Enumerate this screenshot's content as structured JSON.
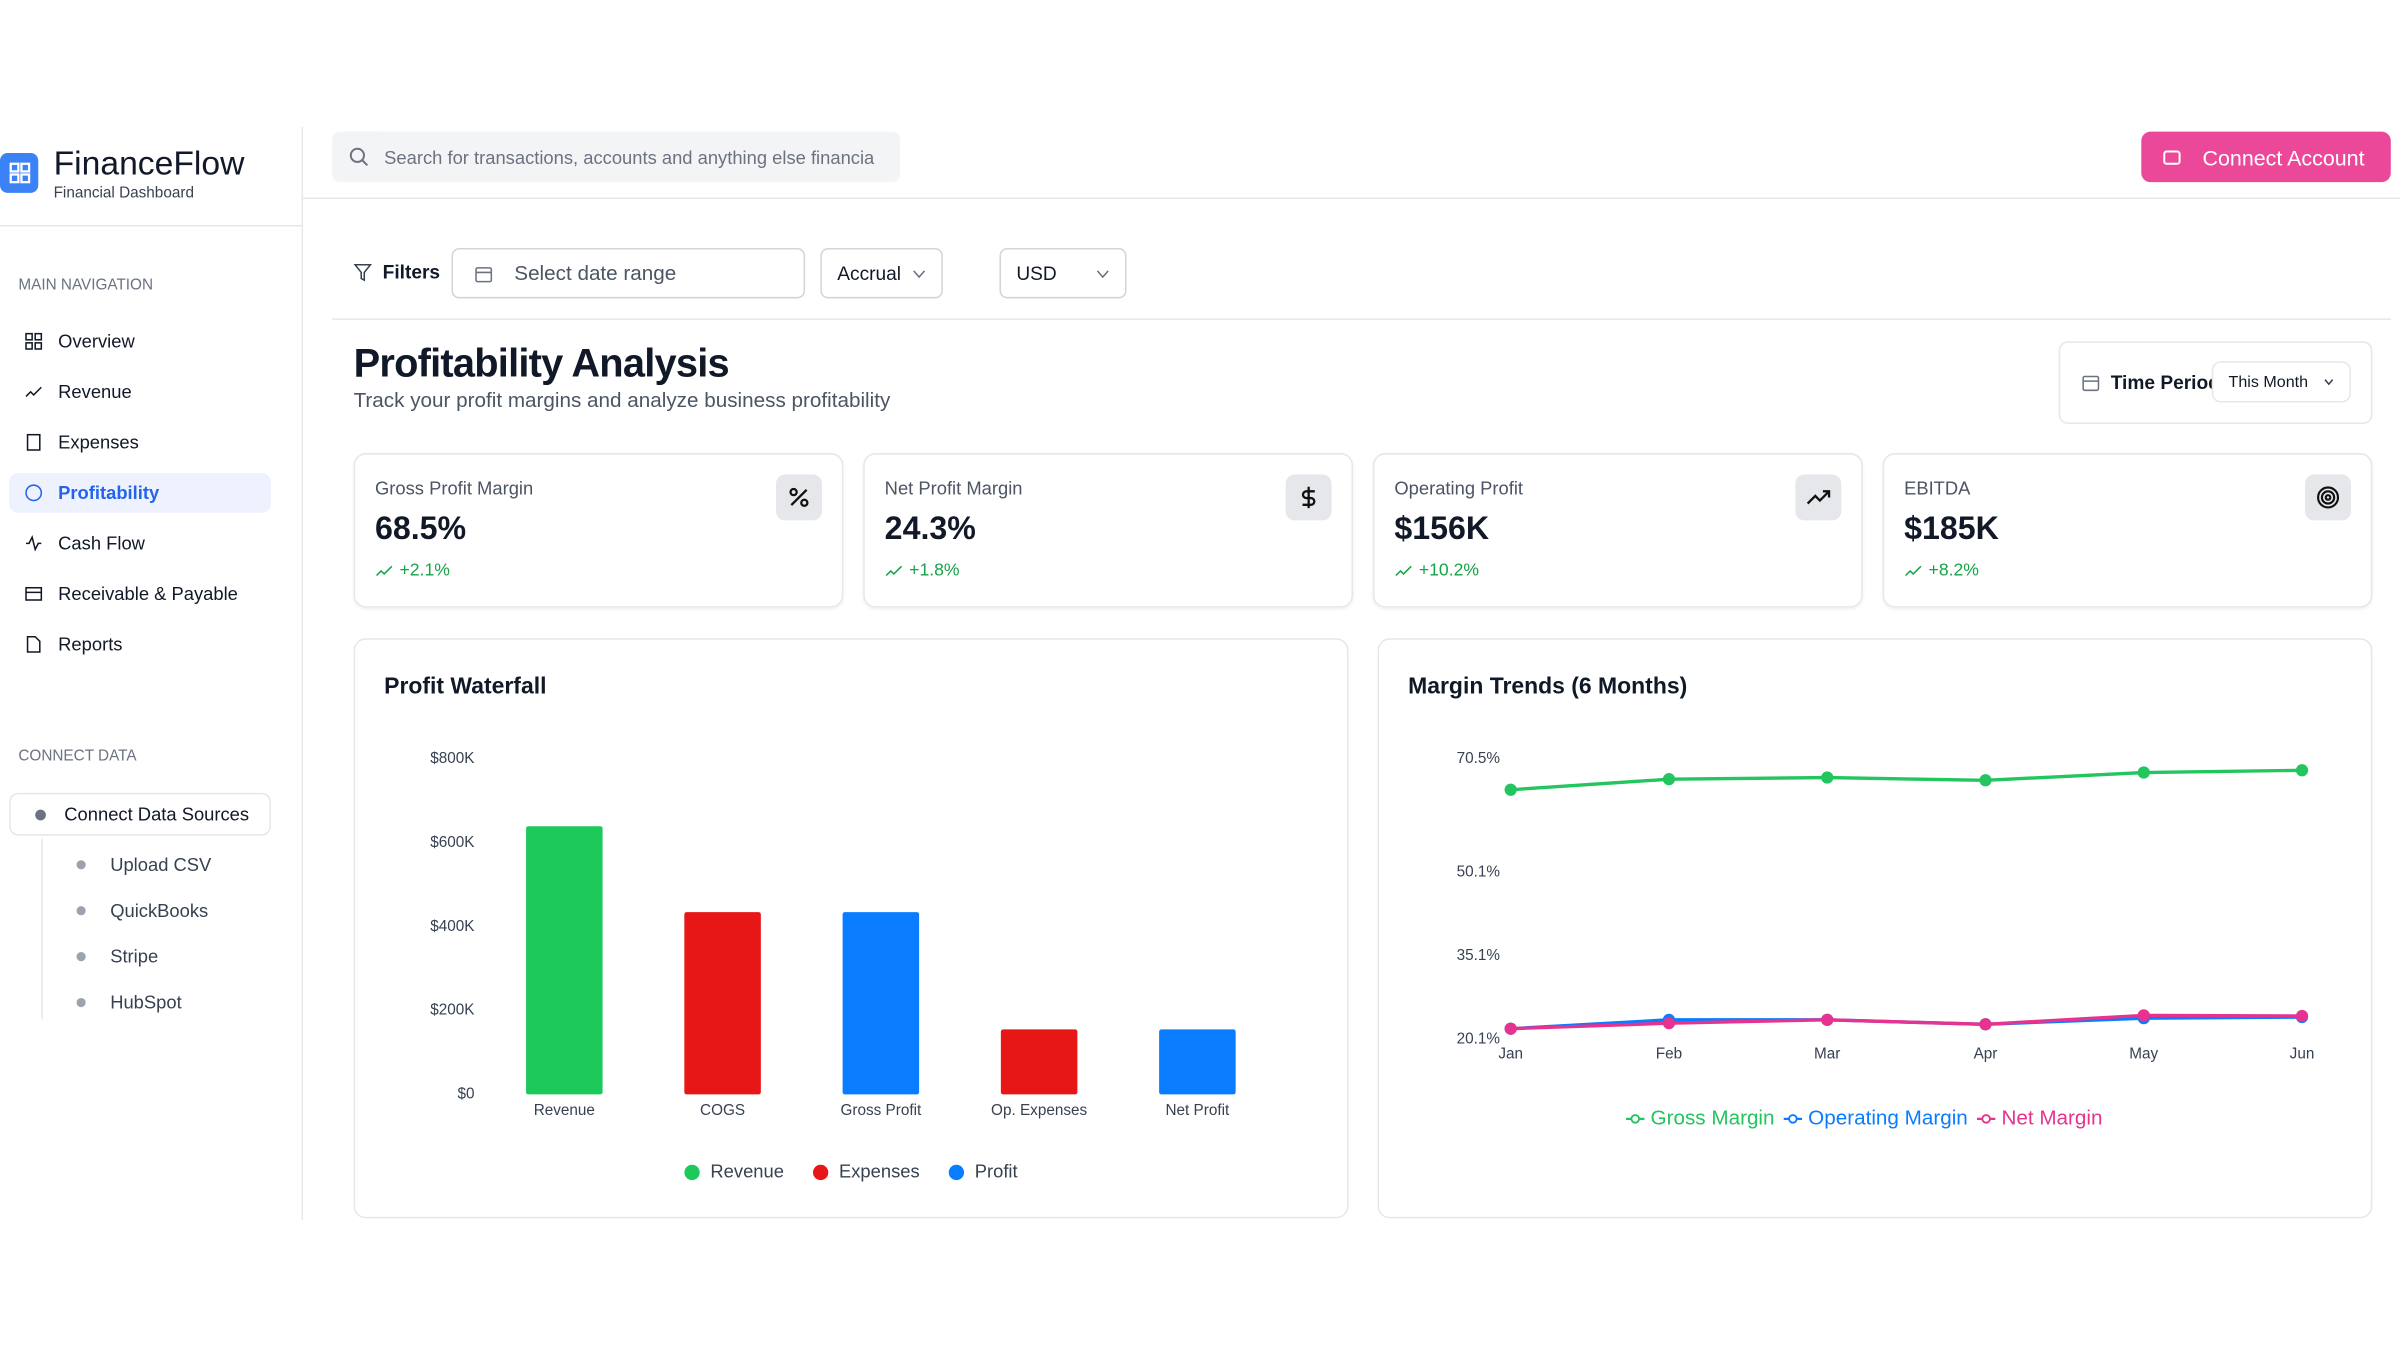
{
  "header": {
    "brand": "FinanceFlow",
    "tagline": "Financial Dashboard",
    "search_placeholder": "Search for transactions, accounts and anything else financia",
    "action": "Connect Account"
  },
  "sidebar": {
    "main_heading": "MAIN NAVIGATION",
    "nav": [
      {
        "label": "Overview"
      },
      {
        "label": "Revenue"
      },
      {
        "label": "Expenses"
      },
      {
        "label": "Profitability",
        "active": true
      },
      {
        "label": "Cash Flow"
      },
      {
        "label": "Receivable & Payable"
      },
      {
        "label": "Reports"
      }
    ],
    "connect_heading": "CONNECT DATA",
    "connect_button": "Connect Data Sources",
    "sources": [
      "Upload CSV",
      "QuickBooks",
      "Stripe",
      "HubSpot"
    ]
  },
  "filters": {
    "label": "Filters",
    "date_placeholder": "Select date range",
    "basis": "Accrual",
    "currency": "USD"
  },
  "page": {
    "title": "Profitability Analysis",
    "subtitle": "Track your profit margins and analyze business profitability",
    "period_label": "Time Period",
    "period": "This Month"
  },
  "kpis": [
    {
      "label": "Gross Profit Margin",
      "value": "68.5%",
      "change": "+2.1%"
    },
    {
      "label": "Net Profit Margin",
      "value": "24.3%",
      "change": "+1.8%"
    },
    {
      "label": "Operating Profit",
      "value": "$156K",
      "change": "+10.2%"
    },
    {
      "label": "EBITDA",
      "value": "$185K",
      "change": "+8.2%"
    }
  ],
  "chart_data": [
    {
      "type": "bar",
      "title": "Profit Waterfall",
      "categories": [
        "Revenue",
        "COGS",
        "Gross Profit",
        "Op. Expenses",
        "Net Profit"
      ],
      "series": [
        {
          "name": "Revenue",
          "color": "#1ec95c",
          "values": [
            640000,
            null,
            null,
            null,
            null
          ]
        },
        {
          "name": "Expenses",
          "color": "#e81717",
          "values": [
            null,
            435000,
            null,
            155000,
            null
          ]
        },
        {
          "name": "Profit",
          "color": "#0a7cff",
          "values": [
            null,
            null,
            435000,
            null,
            155000
          ]
        }
      ],
      "ylim": [
        0,
        800000
      ],
      "yticks": [
        {
          "value": 0,
          "label": "$0"
        },
        {
          "value": 200000,
          "label": "$200K"
        },
        {
          "value": 400000,
          "label": "$400K"
        },
        {
          "value": 600000,
          "label": "$600K"
        },
        {
          "value": 800000,
          "label": "$800K"
        }
      ]
    },
    {
      "type": "line",
      "title": "Margin Trends (6 Months)",
      "categories": [
        "Jan",
        "Feb",
        "Mar",
        "Apr",
        "May",
        "Jun"
      ],
      "series": [
        {
          "name": "Gross Margin",
          "color": "#22c55e",
          "values": [
            65.0,
            66.9,
            67.2,
            66.7,
            68.1,
            68.5
          ]
        },
        {
          "name": "Operating Margin",
          "color": "#0a7cff",
          "values": [
            22.0,
            23.6,
            23.6,
            22.8,
            23.9,
            24.1
          ]
        },
        {
          "name": "Net Margin",
          "color": "#e5338f",
          "values": [
            22.0,
            23.0,
            23.6,
            22.8,
            24.4,
            24.3
          ]
        }
      ],
      "ylim": [
        20.1,
        70.5
      ],
      "yticks": [
        {
          "value": 20.1,
          "label": "20.1%"
        },
        {
          "value": 35.1,
          "label": "35.1%"
        },
        {
          "value": 50.1,
          "label": "50.1%"
        },
        {
          "value": 70.5,
          "label": "70.5%"
        }
      ]
    }
  ]
}
